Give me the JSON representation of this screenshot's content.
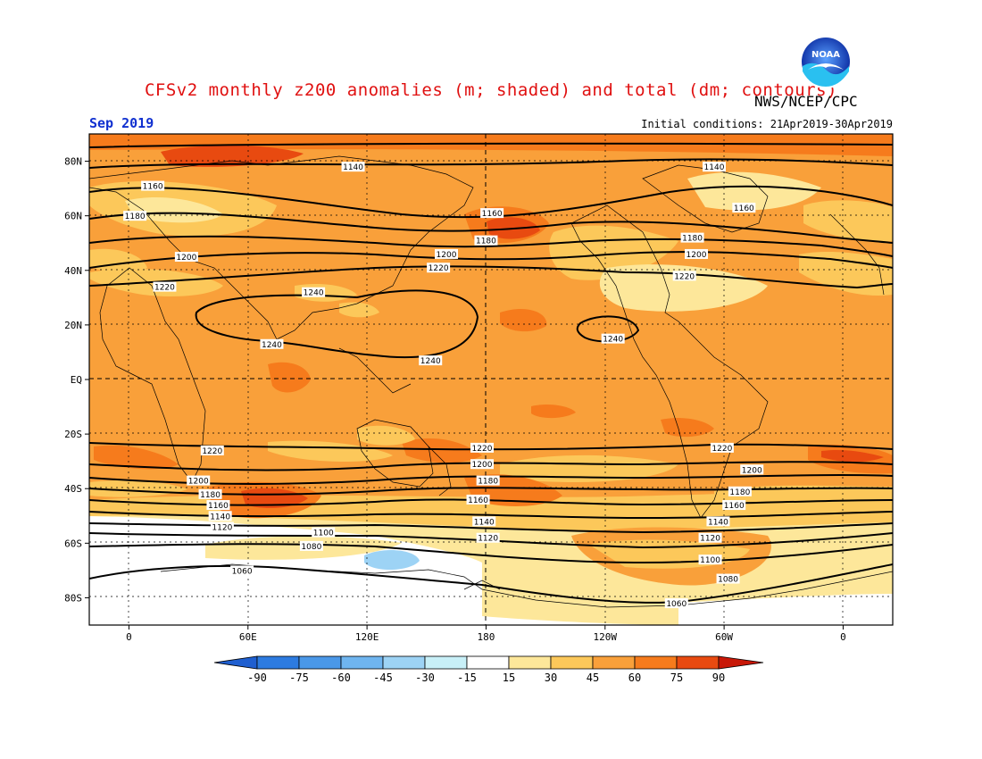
{
  "title": "CFSv2 monthly z200 anomalies (m; shaded) and total (dm; contours)",
  "agency": "NWS/NCEP/CPC",
  "logo_text": "NOAA",
  "valid_month": "Sep 2019",
  "initial_conditions": "Initial conditions: 21Apr2019-30Apr2019",
  "lat_ticks": [
    "80N",
    "60N",
    "40N",
    "20N",
    "EQ",
    "20S",
    "40S",
    "60S",
    "80S"
  ],
  "lon_ticks": [
    "0",
    "60E",
    "120E",
    "180",
    "120W",
    "60W",
    "0"
  ],
  "colorbar": {
    "labels": [
      "-90",
      "-75",
      "-60",
      "-45",
      "-30",
      "-15",
      "15",
      "30",
      "45",
      "60",
      "75",
      "90"
    ],
    "colors": [
      "#1f5fd0",
      "#2d7be0",
      "#4a98e8",
      "#6fb5f0",
      "#9dd3f5",
      "#c8f0f8",
      "#ffffff",
      "#fde79a",
      "#fcc85a",
      "#f9a03a",
      "#f67b1c",
      "#e84a10",
      "#c81808"
    ]
  },
  "contour_labels": [
    {
      "text": "1140",
      "lon": 113,
      "lat": 78
    },
    {
      "text": "1140",
      "lon": 295,
      "lat": 78
    },
    {
      "text": "1160",
      "lon": 12,
      "lat": 71
    },
    {
      "text": "1160",
      "lon": 310,
      "lat": 63
    },
    {
      "text": "1160",
      "lon": 183,
      "lat": 61
    },
    {
      "text": "1180",
      "lon": 3,
      "lat": 60
    },
    {
      "text": "1180",
      "lon": 180,
      "lat": 51
    },
    {
      "text": "1180",
      "lon": 284,
      "lat": 52
    },
    {
      "text": "1200",
      "lon": 29,
      "lat": 45
    },
    {
      "text": "1200",
      "lon": 160,
      "lat": 46
    },
    {
      "text": "1200",
      "lon": 286,
      "lat": 46
    },
    {
      "text": "1220",
      "lon": 18,
      "lat": 34
    },
    {
      "text": "1220",
      "lon": 156,
      "lat": 41
    },
    {
      "text": "1220",
      "lon": 280,
      "lat": 38
    },
    {
      "text": "1240",
      "lon": 93,
      "lat": 32
    },
    {
      "text": "1240",
      "lon": 72,
      "lat": 13
    },
    {
      "text": "1240",
      "lon": 152,
      "lat": 7
    },
    {
      "text": "1240",
      "lon": 244,
      "lat": 15
    },
    {
      "text": "1220",
      "lon": 42,
      "lat": -26
    },
    {
      "text": "1220",
      "lon": 178,
      "lat": -25
    },
    {
      "text": "1220",
      "lon": 299,
      "lat": -25
    },
    {
      "text": "1200",
      "lon": 35,
      "lat": -37
    },
    {
      "text": "1200",
      "lon": 178,
      "lat": -31
    },
    {
      "text": "1200",
      "lon": 314,
      "lat": -33
    },
    {
      "text": "1180",
      "lon": 41,
      "lat": -42
    },
    {
      "text": "1180",
      "lon": 181,
      "lat": -37
    },
    {
      "text": "1180",
      "lon": 308,
      "lat": -41
    },
    {
      "text": "1160",
      "lon": 45,
      "lat": -46
    },
    {
      "text": "1160",
      "lon": 176,
      "lat": -44
    },
    {
      "text": "1160",
      "lon": 305,
      "lat": -46
    },
    {
      "text": "1140",
      "lon": 46,
      "lat": -50
    },
    {
      "text": "1140",
      "lon": 179,
      "lat": -52
    },
    {
      "text": "1140",
      "lon": 297,
      "lat": -52
    },
    {
      "text": "1120",
      "lon": 47,
      "lat": -54
    },
    {
      "text": "1120",
      "lon": 181,
      "lat": -58
    },
    {
      "text": "1120",
      "lon": 293,
      "lat": -58
    },
    {
      "text": "1100",
      "lon": 98,
      "lat": -56
    },
    {
      "text": "1100",
      "lon": 293,
      "lat": -66
    },
    {
      "text": "1080",
      "lon": 92,
      "lat": -61
    },
    {
      "text": "1080",
      "lon": 302,
      "lat": -73
    },
    {
      "text": "1060",
      "lon": 57,
      "lat": -70
    },
    {
      "text": "1060",
      "lon": 276,
      "lat": -82
    }
  ]
}
